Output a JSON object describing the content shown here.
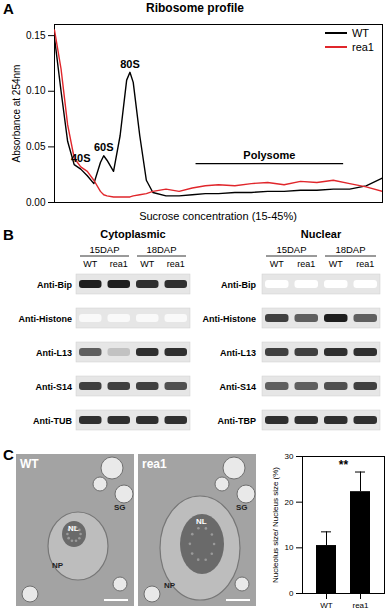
{
  "panel_labels": [
    "A",
    "B",
    "C"
  ],
  "chart_data": [
    {
      "type": "line",
      "title": "Ribosome profile",
      "xlabel": "Sucrose concentration (15-45%)",
      "ylabel": "Absorbance at 254nm",
      "x": [
        0,
        2,
        4,
        6,
        8,
        10,
        12,
        14,
        15,
        16,
        18,
        20,
        22,
        23,
        24,
        26,
        28,
        30,
        34,
        38,
        42,
        46,
        50,
        55,
        60,
        65,
        70,
        75,
        80,
        85,
        90,
        95,
        100
      ],
      "series": [
        {
          "name": "WT",
          "color": "#000000",
          "values": [
            0.148,
            0.1,
            0.055,
            0.034,
            0.03,
            0.024,
            0.017,
            0.036,
            0.042,
            0.038,
            0.028,
            0.06,
            0.11,
            0.117,
            0.108,
            0.06,
            0.02,
            0.009,
            0.006,
            0.006,
            0.007,
            0.008,
            0.008,
            0.009,
            0.009,
            0.01,
            0.01,
            0.011,
            0.011,
            0.012,
            0.012,
            0.015,
            0.022
          ]
        },
        {
          "name": "rea1",
          "color": "#e0262b",
          "values": [
            0.155,
            0.12,
            0.07,
            0.04,
            0.032,
            0.028,
            0.02,
            0.01,
            0.007,
            0.006,
            0.005,
            0.005,
            0.005,
            0.005,
            0.006,
            0.007,
            0.008,
            0.01,
            0.012,
            0.01,
            0.013,
            0.015,
            0.016,
            0.015,
            0.017,
            0.018,
            0.016,
            0.019,
            0.018,
            0.02,
            0.017,
            0.014,
            0.01
          ]
        }
      ],
      "xlim": [
        0,
        100
      ],
      "ylim": [
        0,
        0.16
      ],
      "yticks": [
        {
          "value": 0,
          "label": "0.00"
        },
        {
          "value": 0.05,
          "label": "0.05"
        },
        {
          "value": 0.1,
          "label": "0.10"
        },
        {
          "value": 0.15,
          "label": "0.15"
        }
      ],
      "tick_labels": "y",
      "legend": "top-right",
      "annotations": [
        {
          "text": "40S",
          "x": 8,
          "y": 0.032
        },
        {
          "text": "60S",
          "x": 15,
          "y": 0.042
        },
        {
          "text": "80S",
          "x": 23,
          "y": 0.117
        },
        {
          "text": "Polysome",
          "x": [
            43,
            88
          ],
          "y": 0.035
        }
      ]
    },
    {
      "type": "bar",
      "ylabel": "Nucleolus size/ Nucleus size (%)",
      "categories": [
        "WT",
        "rea1"
      ],
      "values": [
        10.5,
        22.3
      ],
      "errors": [
        3,
        4.3
      ],
      "color": "#000000",
      "ylim": [
        0,
        30
      ],
      "yticks": [
        0,
        10,
        20,
        30
      ],
      "annotations": [
        {
          "text": "**"
        }
      ]
    }
  ],
  "blots": [
    {
      "title": "Cytoplasmic",
      "timepoints": [
        "15DAP",
        "18DAP"
      ],
      "lanes": [
        "WT",
        "rea1",
        "WT",
        "rea1"
      ],
      "rows": [
        {
          "label": "Anti-Bip",
          "bands": [
            0.9,
            0.9,
            0.85,
            0.85
          ]
        },
        {
          "label": "Anti-Histone",
          "bands": [
            0.05,
            0.05,
            0.05,
            0.05
          ]
        },
        {
          "label": "Anti-L13",
          "bands": [
            0.7,
            0.35,
            0.85,
            0.85
          ]
        },
        {
          "label": "Anti-S14",
          "bands": [
            0.8,
            0.8,
            0.8,
            0.75
          ]
        },
        {
          "label": "Anti-TUB",
          "bands": [
            0.85,
            0.85,
            0.85,
            0.85
          ]
        }
      ]
    },
    {
      "title": "Nuclear",
      "timepoints": [
        "15DAP",
        "18DAP"
      ],
      "lanes": [
        "WT",
        "rea1",
        "WT",
        "rea1"
      ],
      "rows": [
        {
          "label": "Anti-Bip",
          "bands": [
            0,
            0,
            0,
            0
          ]
        },
        {
          "label": "Anti-Histone",
          "bands": [
            0.8,
            0.7,
            0.9,
            0.7
          ]
        },
        {
          "label": "Anti-L13",
          "bands": [
            0.8,
            0.8,
            0.85,
            0.85
          ]
        },
        {
          "label": "Anti-S14",
          "bands": [
            0.7,
            0.7,
            0.75,
            0.8
          ]
        },
        {
          "label": "Anti-TBP",
          "bands": [
            0.85,
            0.85,
            0.85,
            0.85
          ]
        }
      ]
    }
  ],
  "micrographs": [
    {
      "label": "WT",
      "regions": [
        "NL",
        "NP",
        "SG"
      ]
    },
    {
      "label": "rea1",
      "regions": [
        "NL",
        "NP",
        "SG"
      ]
    }
  ]
}
